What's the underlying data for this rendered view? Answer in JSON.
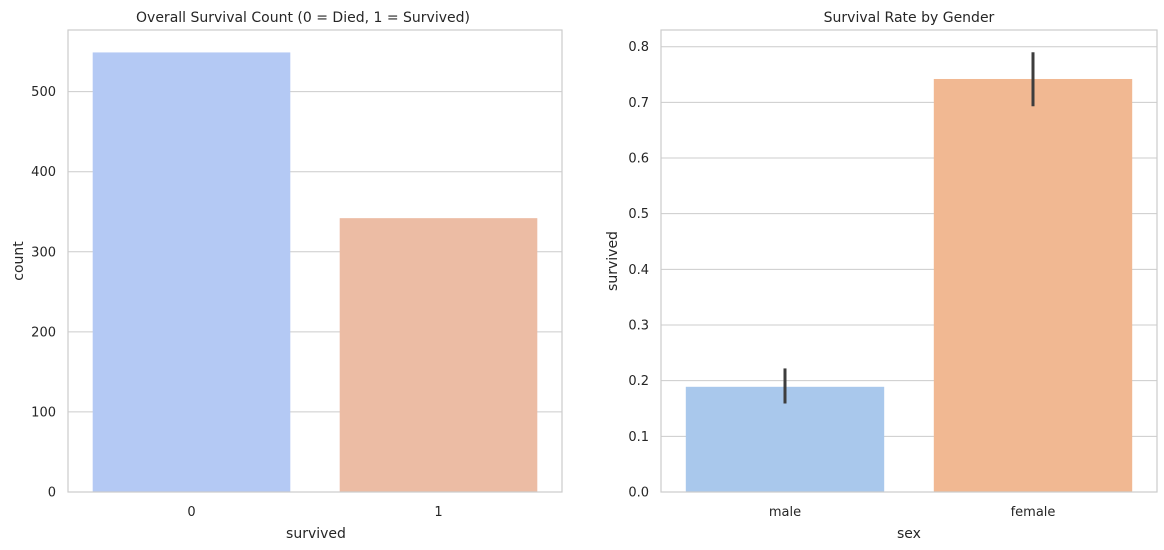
{
  "chart_data": [
    {
      "type": "bar",
      "title": "Overall Survival Count (0 = Died, 1 = Survived)",
      "xlabel": "survived",
      "ylabel": "count",
      "categories": [
        "0",
        "1"
      ],
      "values": [
        549,
        342
      ],
      "ylim": [
        0,
        577
      ],
      "yticks": [
        0,
        100,
        200,
        300,
        400,
        500
      ],
      "colors": [
        "#b4c9f4",
        "#ecbca4"
      ],
      "grid": "horizontal",
      "legend": "none"
    },
    {
      "type": "bar",
      "title": "Survival Rate by Gender",
      "xlabel": "sex",
      "ylabel": "survived",
      "categories": [
        "male",
        "female"
      ],
      "values": [
        0.189,
        0.742
      ],
      "error_low": [
        0.159,
        0.693
      ],
      "error_high": [
        0.222,
        0.79
      ],
      "ylim": [
        0,
        0.83
      ],
      "yticks": [
        0.0,
        0.1,
        0.2,
        0.3,
        0.4,
        0.5,
        0.6,
        0.7,
        0.8
      ],
      "colors": [
        "#a9c8ec",
        "#f1b892"
      ],
      "errorbar_color": "#3d3d3d",
      "grid": "horizontal",
      "legend": "none"
    }
  ]
}
